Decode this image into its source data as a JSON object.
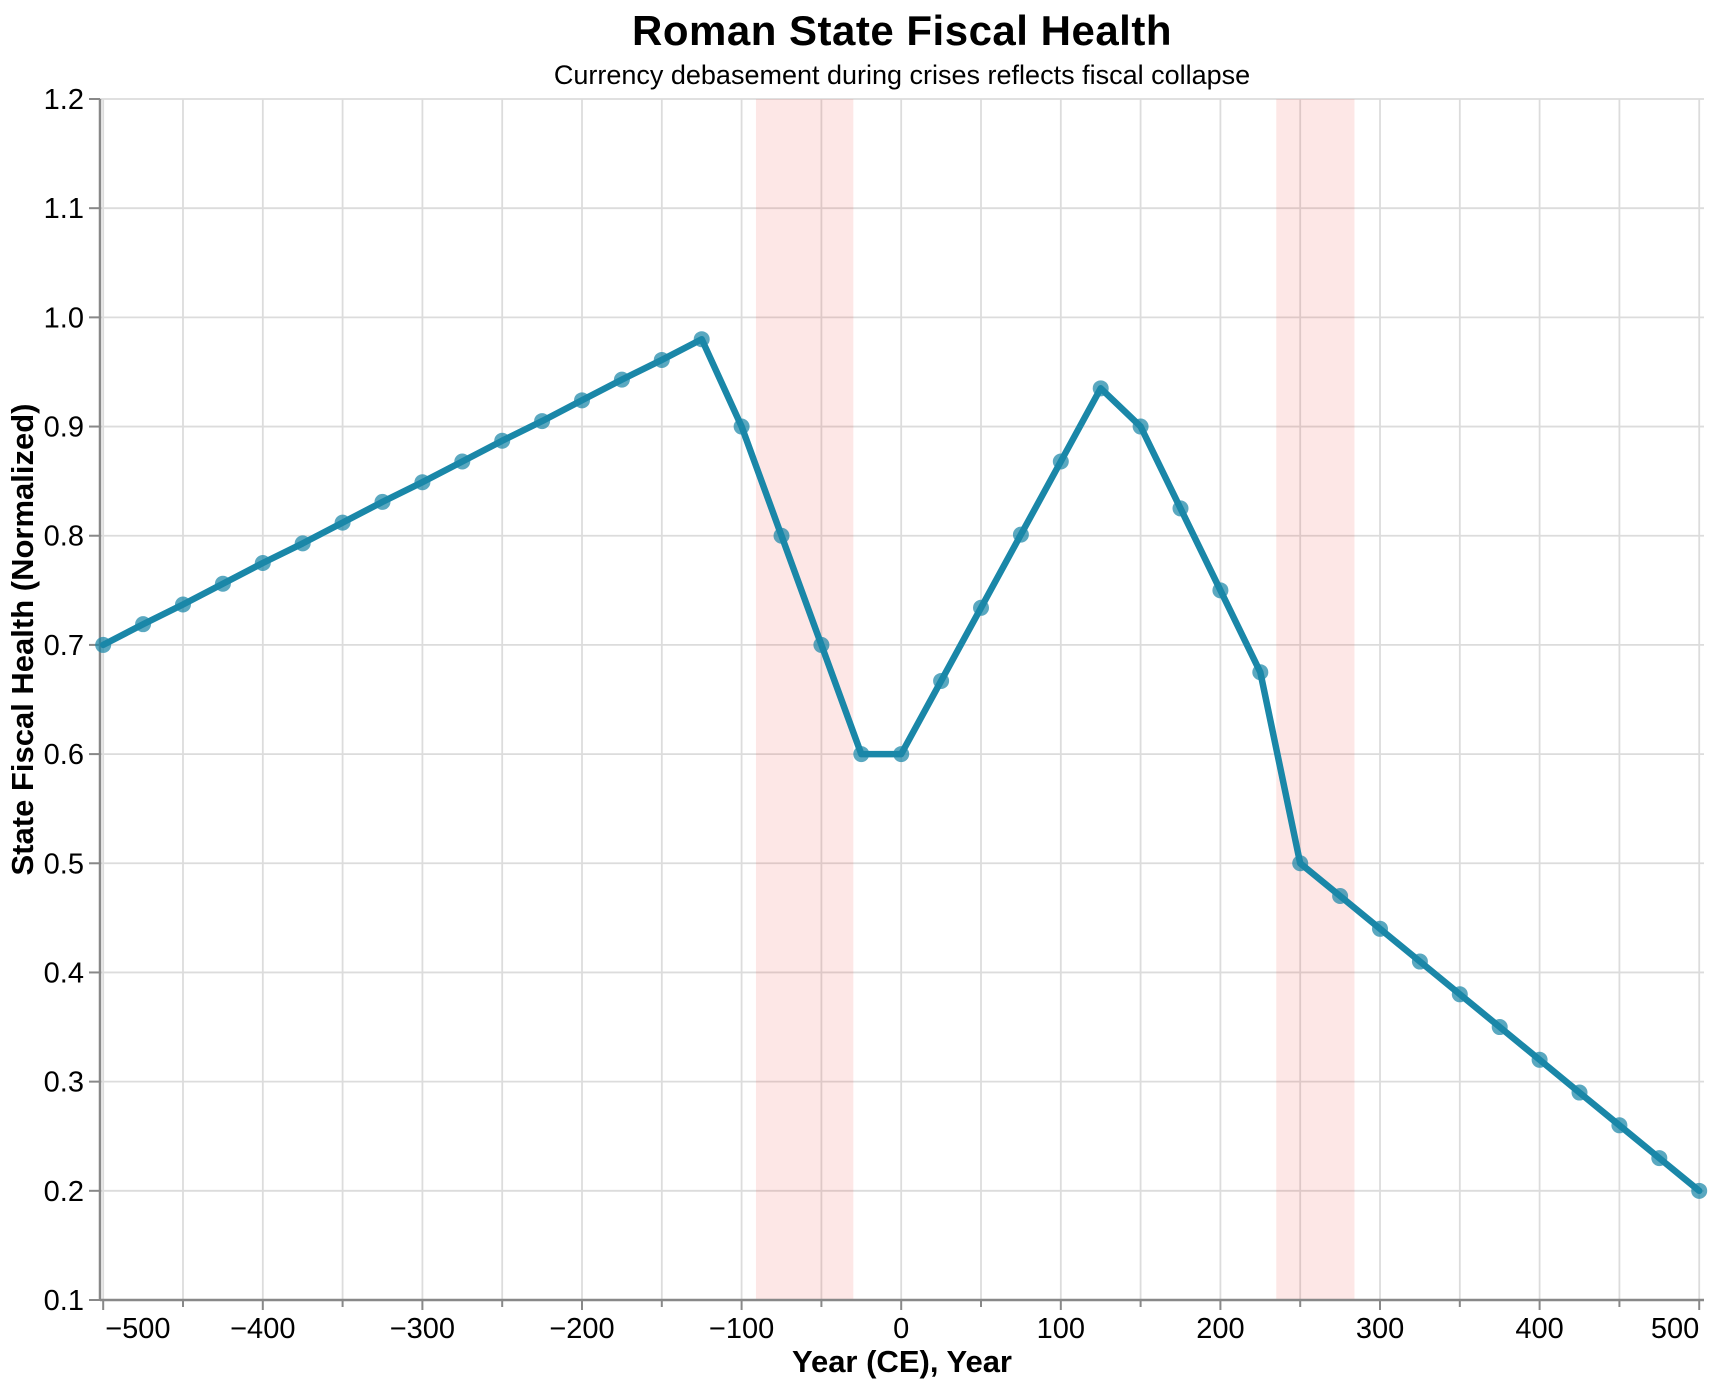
{
  "page": {
    "background": "#ffffff"
  },
  "chart_data": {
    "type": "line",
    "title": "Roman State Fiscal Health",
    "subtitle": "Currency debasement during crises reflects fiscal collapse",
    "xlabel": "Year (CE), Year",
    "ylabel": "State Fiscal Health (Normalized)",
    "x_domain": [
      -502,
      503
    ],
    "y_domain": [
      0.1,
      1.2
    ],
    "x_major_ticks": [
      -500,
      -400,
      -300,
      -200,
      -100,
      0,
      100,
      200,
      300,
      400,
      500
    ],
    "x_major_tick_labels": [
      "−500",
      "−400",
      "−300",
      "−200",
      "−100",
      "0",
      "100",
      "200",
      "300",
      "400",
      "500"
    ],
    "x_minor_ticks": [
      -450,
      -350,
      -250,
      -150,
      -50,
      50,
      150,
      250,
      350,
      450
    ],
    "y_ticks": [
      0.1,
      0.2,
      0.3,
      0.4,
      0.5,
      0.6,
      0.7,
      0.8,
      0.9,
      1.0,
      1.1,
      1.2
    ],
    "y_tick_labels": [
      "0.1",
      "0.2",
      "0.3",
      "0.4",
      "0.5",
      "0.6",
      "0.7",
      "0.8",
      "0.9",
      "1.0",
      "1.1",
      "1.2"
    ],
    "grid": true,
    "legend_position": "none",
    "crisis_bands": [
      {
        "from": -91,
        "to": -30
      },
      {
        "from": 235,
        "to": 284
      }
    ],
    "series": [
      {
        "name": "State Fiscal Health (Normalized)",
        "points": [
          [
            -500,
            0.7
          ],
          [
            -475,
            0.719
          ],
          [
            -450,
            0.737
          ],
          [
            -425,
            0.756
          ],
          [
            -400,
            0.775
          ],
          [
            -375,
            0.793
          ],
          [
            -350,
            0.812
          ],
          [
            -325,
            0.831
          ],
          [
            -300,
            0.849
          ],
          [
            -275,
            0.868
          ],
          [
            -250,
            0.887
          ],
          [
            -225,
            0.905
          ],
          [
            -200,
            0.924
          ],
          [
            -175,
            0.943
          ],
          [
            -150,
            0.961
          ],
          [
            -125,
            0.98
          ],
          [
            -100,
            0.9
          ],
          [
            -75,
            0.8
          ],
          [
            -50,
            0.7
          ],
          [
            -25,
            0.6
          ],
          [
            0,
            0.6
          ],
          [
            25,
            0.667
          ],
          [
            50,
            0.734
          ],
          [
            75,
            0.801
          ],
          [
            100,
            0.868
          ],
          [
            125,
            0.935
          ],
          [
            150,
            0.9
          ],
          [
            175,
            0.825
          ],
          [
            200,
            0.75
          ],
          [
            225,
            0.675
          ],
          [
            250,
            0.5
          ],
          [
            275,
            0.47
          ],
          [
            300,
            0.44
          ],
          [
            325,
            0.41
          ],
          [
            350,
            0.38
          ],
          [
            375,
            0.35
          ],
          [
            400,
            0.32
          ],
          [
            425,
            0.29
          ],
          [
            450,
            0.26
          ],
          [
            475,
            0.23
          ],
          [
            500,
            0.2
          ]
        ]
      }
    ],
    "colors": {
      "line": "#1a87a8",
      "marker": "#1a87a8",
      "marker_opacity": 0.72,
      "band": "rgba(237, 72, 64, 0.13)",
      "grid": "#dcdcdc",
      "axis": "#888888",
      "text": "#000000"
    }
  }
}
